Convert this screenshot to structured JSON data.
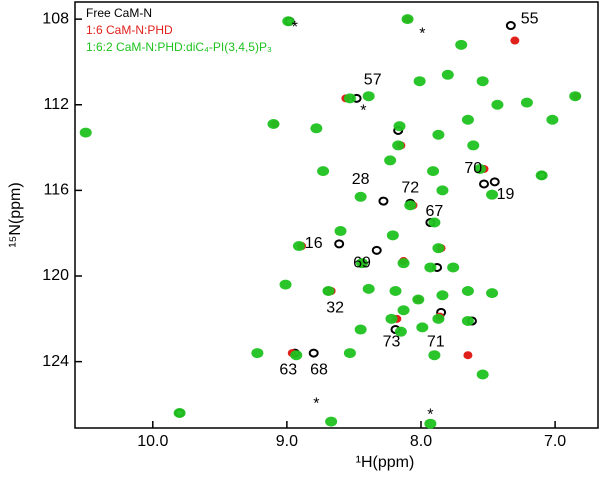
{
  "chart_data": {
    "type": "scatter",
    "xlabel": "¹H(ppm)",
    "ylabel": "¹⁵N(ppm)",
    "xlim": [
      10.58,
      6.68
    ],
    "ylim": [
      107.2,
      127.1
    ],
    "xticks": [
      {
        "value": 10,
        "label": "10.0"
      },
      {
        "value": 9,
        "label": "9.0"
      },
      {
        "value": 8,
        "label": "8.0"
      },
      {
        "value": 7,
        "label": "7.0"
      }
    ],
    "yticks": [
      108,
      112,
      116,
      120,
      124
    ],
    "series": [
      {
        "name": "Free CaM-N",
        "color": "#000000",
        "x": [
          7.33,
          8.48,
          7.53,
          7.45,
          8.28,
          8.08,
          7.93,
          8.33,
          8.61,
          8.69,
          7.85,
          8.19,
          8.94,
          8.8,
          9.8,
          8.98,
          8.17,
          7.1,
          7.88,
          7.62
        ],
        "y": [
          108.3,
          111.7,
          115.7,
          115.6,
          116.5,
          116.6,
          117.5,
          118.8,
          118.5,
          120.7,
          121.7,
          122.5,
          123.6,
          123.6,
          126.4,
          108.1,
          113.2,
          115.3,
          119.6,
          122.1
        ]
      },
      {
        "name": "1:6 CaM-N:PHD",
        "color": "#e0201b",
        "x": [
          8.1,
          7.3,
          8.96,
          8.56,
          8.02,
          8.89,
          8.18,
          7.85,
          7.53,
          8.67,
          6.84,
          8.43,
          8.06,
          7.65,
          9.09,
          8.15,
          7.86,
          8.13
        ],
        "y": [
          108.0,
          109.0,
          123.6,
          111.7,
          121.1,
          118.6,
          122.0,
          118.7,
          115.0,
          120.7,
          111.6,
          119.4,
          116.7,
          123.7,
          112.9,
          113.9,
          121.9,
          119.3
        ]
      },
      {
        "name": "1:6:2 CaM-N:PHD:diC₄-PI(3,4,5)P₃",
        "color": "#1fc21f",
        "x": [
          10.5,
          8.99,
          8.1,
          7.7,
          8.53,
          8.39,
          8.01,
          7.8,
          7.54,
          7.43,
          7.21,
          6.85,
          7.02,
          9.1,
          8.78,
          8.16,
          8.17,
          7.87,
          7.65,
          7.61,
          8.73,
          8.23,
          7.91,
          7.56,
          7.1,
          8.45,
          8.08,
          7.84,
          7.47,
          8.91,
          8.6,
          8.44,
          8.21,
          7.9,
          7.87,
          7.76,
          7.93,
          8.13,
          9.01,
          8.69,
          8.39,
          8.19,
          8.02,
          7.84,
          7.65,
          7.47,
          8.13,
          7.87,
          7.65,
          8.22,
          8.15,
          7.99,
          9.22,
          8.93,
          8.53,
          8.45,
          7.9,
          7.54,
          8.67,
          9.8,
          7.93
        ],
        "y": [
          113.3,
          108.1,
          108.0,
          109.2,
          111.7,
          111.6,
          110.9,
          110.6,
          110.9,
          112.0,
          111.9,
          111.6,
          112.7,
          112.9,
          113.1,
          113.0,
          113.9,
          113.4,
          112.7,
          113.9,
          115.1,
          114.6,
          115.1,
          115.0,
          115.3,
          116.3,
          116.7,
          116.0,
          116.2,
          118.6,
          117.9,
          119.4,
          118.1,
          117.5,
          118.7,
          119.6,
          119.6,
          119.4,
          120.4,
          120.7,
          120.6,
          120.7,
          121.1,
          120.9,
          120.7,
          120.8,
          121.6,
          122.0,
          122.1,
          122.0,
          122.6,
          122.4,
          123.6,
          123.7,
          123.6,
          122.5,
          123.7,
          124.6,
          126.8,
          126.4,
          126.9
        ]
      }
    ],
    "annotations": [
      {
        "text": "55",
        "x": 7.19,
        "y": 108.0
      },
      {
        "text": "*",
        "x": 8.94,
        "y": 108.4
      },
      {
        "text": "*",
        "x": 7.99,
        "y": 108.7
      },
      {
        "text": "57",
        "x": 8.36,
        "y": 110.85
      },
      {
        "text": "*",
        "x": 8.43,
        "y": 112.3
      },
      {
        "text": "28",
        "x": 8.45,
        "y": 115.5
      },
      {
        "text": "72",
        "x": 8.08,
        "y": 115.9
      },
      {
        "text": "70",
        "x": 7.61,
        "y": 115.0
      },
      {
        "text": "19",
        "x": 7.37,
        "y": 116.2
      },
      {
        "text": "67",
        "x": 7.9,
        "y": 117.0
      },
      {
        "text": "16",
        "x": 8.8,
        "y": 118.5
      },
      {
        "text": "69",
        "x": 8.44,
        "y": 119.4
      },
      {
        "text": "32",
        "x": 8.64,
        "y": 121.5
      },
      {
        "text": "73",
        "x": 8.22,
        "y": 123.1
      },
      {
        "text": "71",
        "x": 7.89,
        "y": 123.1
      },
      {
        "text": "63",
        "x": 8.99,
        "y": 124.4
      },
      {
        "text": "68",
        "x": 8.76,
        "y": 124.4
      },
      {
        "text": "*",
        "x": 8.78,
        "y": 126.0
      },
      {
        "text": "*",
        "x": 7.93,
        "y": 126.5
      }
    ]
  }
}
